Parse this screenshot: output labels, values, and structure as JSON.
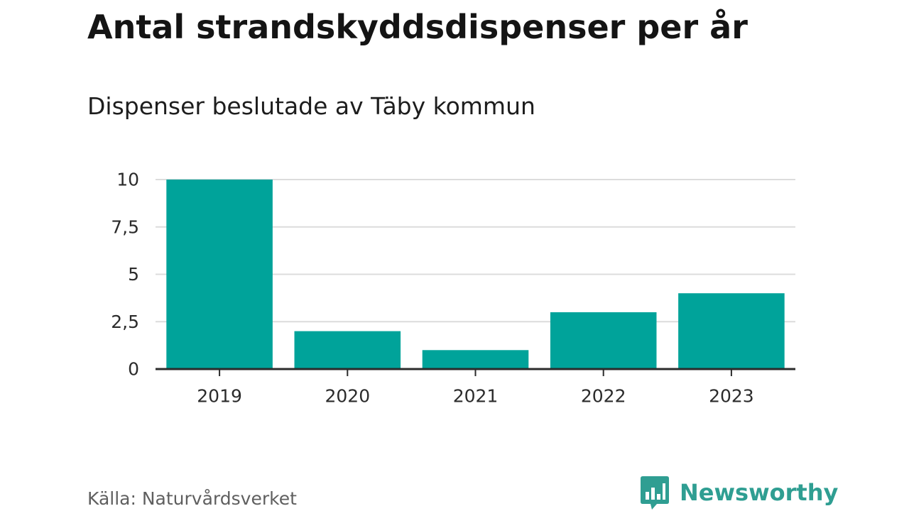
{
  "header": {
    "title": "Antal strandskyddsdispenser per år",
    "subtitle": "Dispenser beslutade av Täby kommun"
  },
  "footer": {
    "source": "Källa: Naturvårdsverket",
    "brand_name": "Newsworthy",
    "brand_icon": "newsworthy-logo-icon"
  },
  "colors": {
    "bar": "#00a39a",
    "grid": "#dcdcdc",
    "axis": "#2b2b2b",
    "tick_text": "#2b2b2b",
    "brand": "#2f9e92"
  },
  "chart_data": {
    "type": "bar",
    "title": "Antal strandskyddsdispenser per år",
    "subtitle": "Dispenser beslutade av Täby kommun",
    "xlabel": "",
    "ylabel": "",
    "categories": [
      "2019",
      "2020",
      "2021",
      "2022",
      "2023"
    ],
    "values": [
      10,
      2,
      1,
      3,
      4
    ],
    "ylim": [
      0,
      10
    ],
    "yticks": [
      0,
      2.5,
      5,
      7.5,
      10
    ],
    "ytick_labels": [
      "0",
      "2,5",
      "5",
      "7,5",
      "10"
    ],
    "grid": true,
    "legend": "none",
    "data_labels": false
  }
}
